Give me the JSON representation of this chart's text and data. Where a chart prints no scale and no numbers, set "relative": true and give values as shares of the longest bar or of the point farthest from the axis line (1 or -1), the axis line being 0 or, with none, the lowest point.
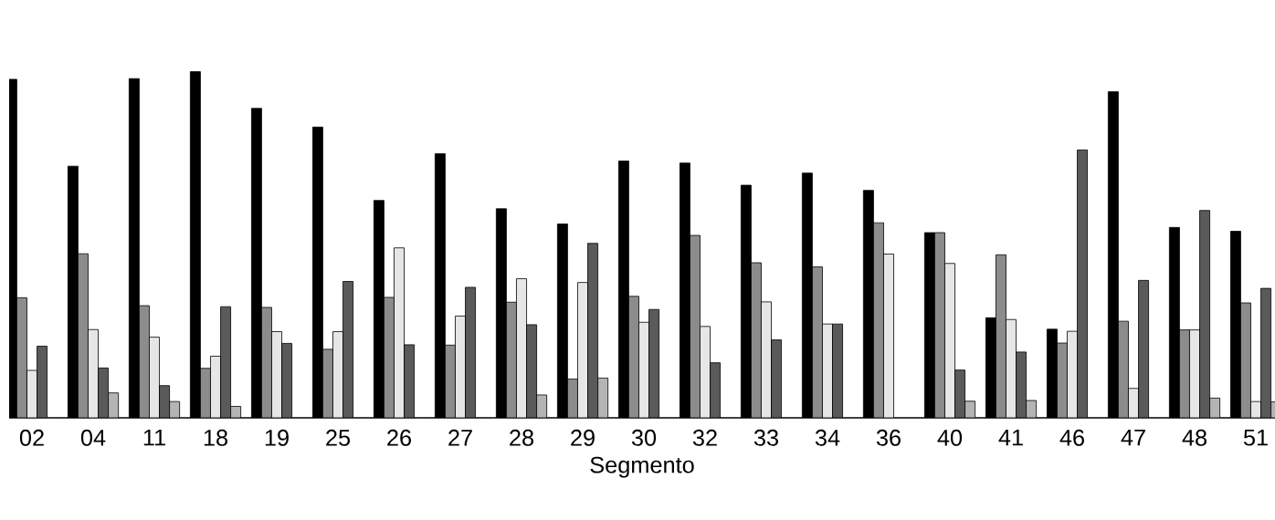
{
  "chart_data": {
    "type": "bar",
    "relative": true,
    "xlabel": "Segmento",
    "categories": [
      "02",
      "04",
      "11",
      "18",
      "19",
      "25",
      "26",
      "27",
      "28",
      "29",
      "30",
      "32",
      "33",
      "34",
      "36",
      "40",
      "41",
      "46",
      "47",
      "48",
      "51"
    ],
    "series": [
      {
        "color": "#000000",
        "values": [
          0.978,
          0.727,
          0.98,
          1.0,
          0.894,
          0.84,
          0.628,
          0.763,
          0.604,
          0.56,
          0.742,
          0.736,
          0.672,
          0.707,
          0.657,
          0.535,
          0.289,
          0.256,
          0.942,
          0.55,
          0.539
        ]
      },
      {
        "color": "#8c8c8c",
        "values": [
          0.347,
          0.474,
          0.324,
          0.143,
          0.319,
          0.198,
          0.348,
          0.21,
          0.334,
          0.112,
          0.351,
          0.527,
          0.448,
          0.436,
          0.564,
          0.535,
          0.471,
          0.216,
          0.279,
          0.254,
          0.332
        ]
      },
      {
        "color": "#e6e6e6",
        "values": [
          0.137,
          0.255,
          0.233,
          0.178,
          0.249,
          0.249,
          0.491,
          0.294,
          0.402,
          0.391,
          0.276,
          0.264,
          0.335,
          0.271,
          0.473,
          0.446,
          0.284,
          0.25,
          0.085,
          0.254,
          0.047
        ]
      },
      {
        "color": "#5a5a5a",
        "values": [
          0.207,
          0.144,
          0.093,
          0.321,
          0.215,
          0.394,
          0.211,
          0.377,
          0.269,
          0.504,
          0.313,
          0.159,
          0.225,
          0.271,
          null,
          0.138,
          0.19,
          0.774,
          0.397,
          0.599,
          0.374
        ]
      },
      {
        "color": "#b4b4b4",
        "values": [
          null,
          0.072,
          0.047,
          0.033,
          null,
          null,
          null,
          null,
          0.066,
          0.115,
          null,
          null,
          null,
          null,
          null,
          0.048,
          0.05,
          null,
          null,
          0.057,
          0.046
        ]
      }
    ]
  }
}
